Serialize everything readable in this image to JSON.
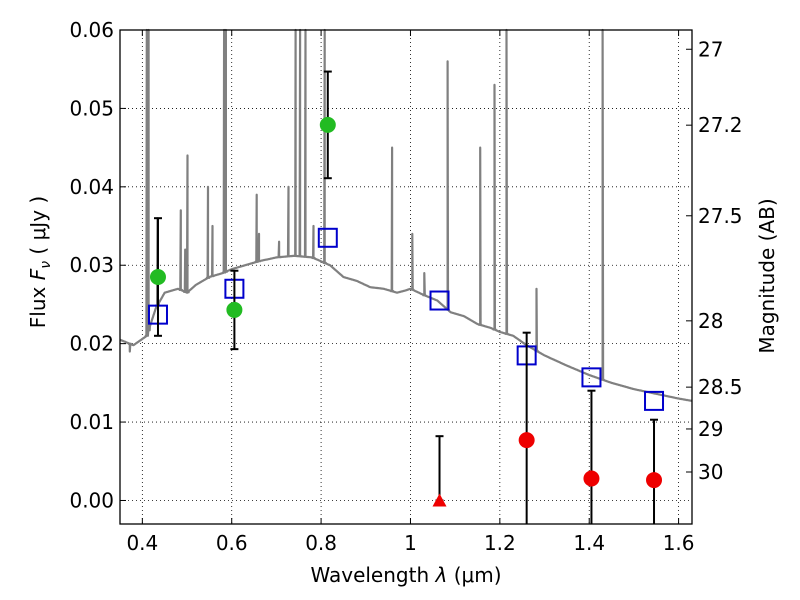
{
  "chart_data": {
    "type": "scatter",
    "xlabel_text": "Wavelength",
    "xlabel_symbol": "λ",
    "xlabel_unit": "(μm)",
    "ylabel_text": "Flux",
    "ylabel_symbol": "F",
    "ylabel_subscript": "ν",
    "ylabel_unit": "( μJy )",
    "y2label": "Magnitude (AB)",
    "xlim": [
      0.35,
      1.63
    ],
    "ylim": [
      -0.003,
      0.06
    ],
    "grid": true,
    "x_ticks": [
      0.4,
      0.6,
      0.8,
      1.0,
      1.2,
      1.4,
      1.6
    ],
    "x_tick_labels": [
      "0.4",
      "0.6",
      "0.8",
      "1",
      "1.2",
      "1.4",
      "1.6"
    ],
    "y_ticks": [
      0.0,
      0.01,
      0.02,
      0.03,
      0.04,
      0.05,
      0.06
    ],
    "y_tick_labels": [
      "0.00",
      "0.01",
      "0.02",
      "0.03",
      "0.04",
      "0.05",
      "0.06"
    ],
    "y2_ticks": [
      27,
      27.2,
      27.5,
      28,
      28.5,
      29,
      30
    ],
    "y2_tick_labels": [
      "27",
      "27.2",
      "27.5",
      "28",
      "28.5",
      "29",
      "30"
    ],
    "model_spectrum": {
      "color": "#808080",
      "continuum": [
        [
          0.35,
          0.0205
        ],
        [
          0.38,
          0.0198
        ],
        [
          0.41,
          0.021
        ],
        [
          0.43,
          0.0245
        ],
        [
          0.45,
          0.0265
        ],
        [
          0.48,
          0.027
        ],
        [
          0.5,
          0.0265
        ],
        [
          0.52,
          0.0275
        ],
        [
          0.55,
          0.0285
        ],
        [
          0.58,
          0.029
        ],
        [
          0.6,
          0.0295
        ],
        [
          0.63,
          0.03
        ],
        [
          0.66,
          0.0305
        ],
        [
          0.7,
          0.031
        ],
        [
          0.74,
          0.0312
        ],
        [
          0.78,
          0.031
        ],
        [
          0.8,
          0.0305
        ],
        [
          0.82,
          0.03
        ],
        [
          0.85,
          0.0285
        ],
        [
          0.88,
          0.028
        ],
        [
          0.91,
          0.0272
        ],
        [
          0.94,
          0.027
        ],
        [
          0.97,
          0.0265
        ],
        [
          0.99,
          0.0268
        ],
        [
          1.0,
          0.027
        ],
        [
          1.03,
          0.0262
        ],
        [
          1.06,
          0.0255
        ],
        [
          1.09,
          0.024
        ],
        [
          1.12,
          0.0235
        ],
        [
          1.15,
          0.0225
        ],
        [
          1.18,
          0.022
        ],
        [
          1.2,
          0.0215
        ],
        [
          1.23,
          0.021
        ],
        [
          1.26,
          0.0198
        ],
        [
          1.3,
          0.0185
        ],
        [
          1.35,
          0.0172
        ],
        [
          1.4,
          0.016
        ],
        [
          1.45,
          0.015
        ],
        [
          1.5,
          0.0142
        ],
        [
          1.55,
          0.0136
        ],
        [
          1.6,
          0.013
        ],
        [
          1.63,
          0.0127
        ]
      ],
      "lines": [
        [
          0.372,
          0.019
        ],
        [
          0.41,
          0.06
        ],
        [
          0.414,
          0.06
        ],
        [
          0.434,
          0.036
        ],
        [
          0.486,
          0.037
        ],
        [
          0.496,
          0.032
        ],
        [
          0.501,
          0.044
        ],
        [
          0.547,
          0.04
        ],
        [
          0.557,
          0.035
        ],
        [
          0.583,
          0.063
        ],
        [
          0.587,
          0.063
        ],
        [
          0.656,
          0.039
        ],
        [
          0.661,
          0.034
        ],
        [
          0.706,
          0.033
        ],
        [
          0.727,
          0.04
        ],
        [
          0.743,
          0.062
        ],
        [
          0.753,
          0.062
        ],
        [
          0.765,
          0.062
        ],
        [
          0.783,
          0.035
        ],
        [
          0.808,
          0.062
        ],
        [
          0.959,
          0.045
        ],
        [
          1.004,
          0.034
        ],
        [
          1.031,
          0.029
        ],
        [
          1.083,
          0.056
        ],
        [
          1.156,
          0.045
        ],
        [
          1.188,
          0.053
        ],
        [
          1.215,
          0.062
        ],
        [
          1.282,
          0.027
        ],
        [
          1.43,
          0.06
        ]
      ]
    },
    "series": [
      {
        "marker": "open-square",
        "color": "#0000cc",
        "x": [
          0.435,
          0.606,
          0.815,
          1.065,
          1.26,
          1.405,
          1.545
        ],
        "y": [
          0.0237,
          0.027,
          0.0335,
          0.0255,
          0.0185,
          0.0157,
          0.0127
        ]
      },
      {
        "marker": "circle",
        "color": "#22bb22",
        "x": [
          0.435,
          0.606,
          0.815
        ],
        "y": [
          0.0285,
          0.0243,
          0.0479
        ],
        "yerr": [
          [
            0.0075,
            0.0075
          ],
          [
            0.005,
            0.005
          ],
          [
            0.0068,
            0.0068
          ]
        ]
      },
      {
        "marker": "circle",
        "color": "#ee0000",
        "x": [
          1.26,
          1.405,
          1.545
        ],
        "y": [
          0.0077,
          0.0028,
          0.0026
        ],
        "yerr": [
          [
            0.0137,
            0.0137
          ],
          [
            0.0112,
            0.0112
          ],
          [
            0.0077,
            0.0077
          ]
        ]
      },
      {
        "marker": "triangle",
        "color": "#ee0000",
        "x": [
          1.065
        ],
        "y": [
          0.0
        ],
        "yerr": [
          [
            0.0,
            0.0082
          ]
        ]
      }
    ]
  }
}
